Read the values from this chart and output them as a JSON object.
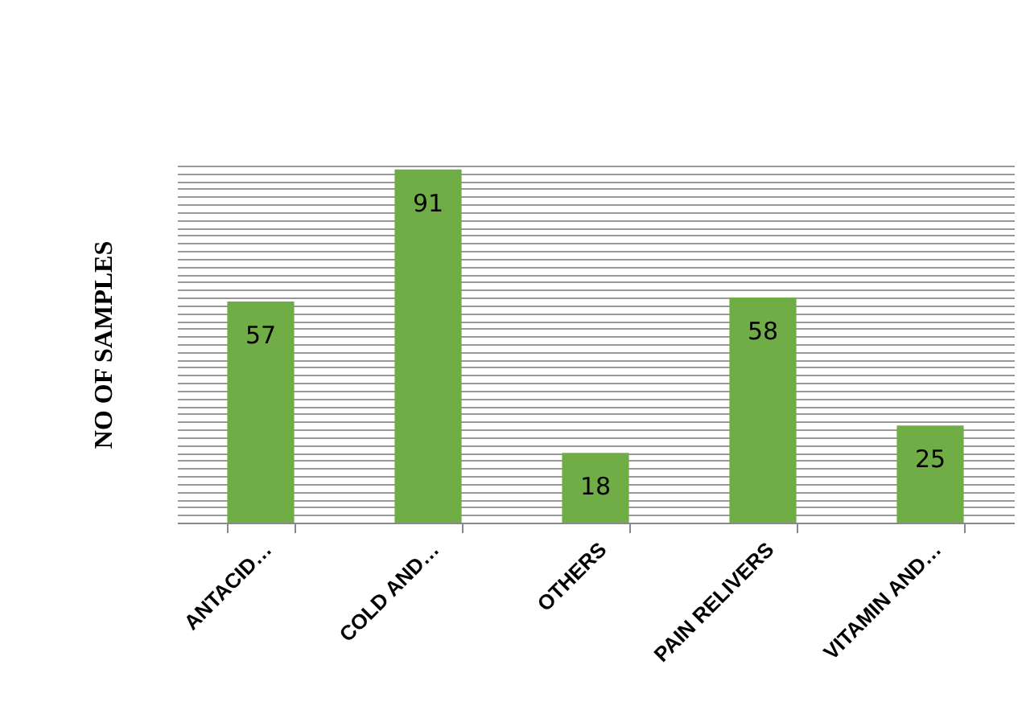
{
  "chart_data": {
    "type": "bar",
    "ylabel": "NO OF SAMPLES",
    "categories": [
      "ANTACID…",
      "COLD AND…",
      "OTHERS",
      "PAIN RELIVERS",
      "VITAMIN AND…"
    ],
    "values": [
      57,
      91,
      18,
      58,
      25
    ],
    "color": "#70ad47",
    "data_labels": true,
    "grid": "y",
    "tick_labels": "x"
  }
}
